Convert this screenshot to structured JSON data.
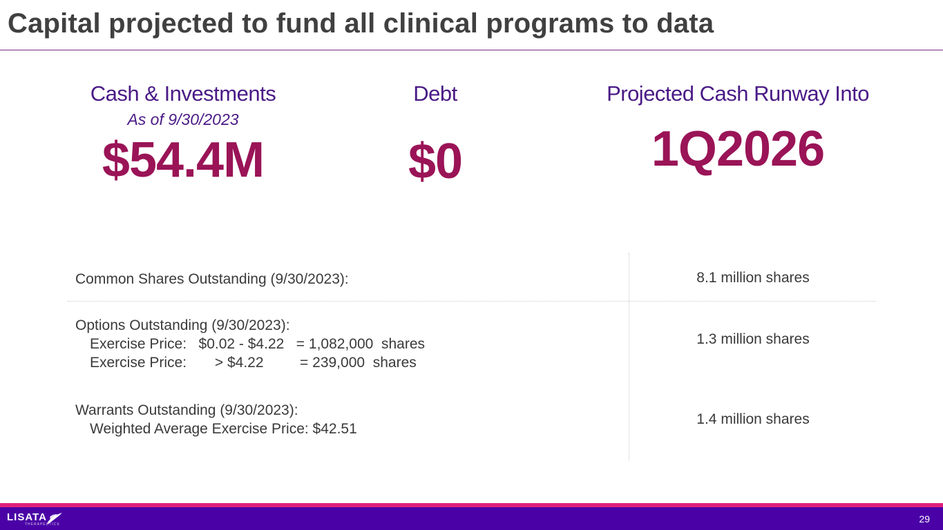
{
  "slide": {
    "title": "Capital projected to fund all clinical programs to data",
    "page_number": "29"
  },
  "metrics": {
    "cash": {
      "label": "Cash & Investments",
      "sub": "As of 9/30/2023",
      "value": "$54.4M"
    },
    "debt": {
      "label": "Debt",
      "value": "$0"
    },
    "runway": {
      "label": "Projected Cash Runway Into",
      "value": "1Q2026"
    }
  },
  "table": {
    "rows": [
      {
        "heading": "Common Shares Outstanding (9/30/2023):",
        "value": "8.1 million shares"
      },
      {
        "heading": "Options Outstanding (9/30/2023):",
        "lines": [
          "Exercise Price:   $0.02 - $4.22   = 1,082,000  shares",
          "Exercise Price:       > $4.22         = 239,000  shares"
        ],
        "value": "1.3 million shares"
      },
      {
        "heading": "Warrants Outstanding (9/30/2023):",
        "lines": [
          "Weighted Average Exercise Price: $42.51"
        ],
        "value": "1.4 million shares"
      }
    ]
  },
  "footer": {
    "logo_text": "LISATA",
    "logo_subtext": "THERAPEUTICS"
  },
  "colors": {
    "title": "#404040",
    "label_purple": "#4a1a86",
    "value_magenta": "#9a1457",
    "footer_purple": "#4a02a6",
    "footer_stripe": "#e0217a"
  }
}
